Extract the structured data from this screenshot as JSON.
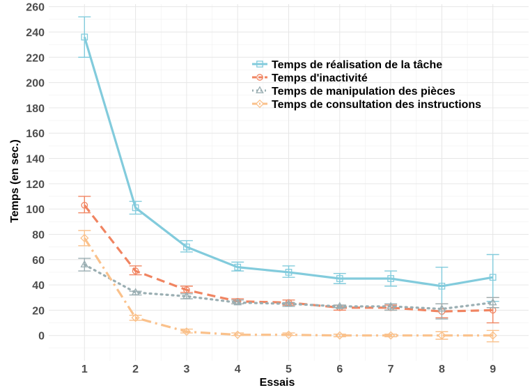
{
  "chart_data": {
    "type": "line",
    "title": "",
    "xlabel": "Essais",
    "ylabel": "Temps (en sec.)",
    "x": [
      1,
      2,
      3,
      4,
      5,
      6,
      7,
      8,
      9
    ],
    "x_ticks": [
      "1",
      "2",
      "3",
      "4",
      "5",
      "6",
      "7",
      "8",
      "9"
    ],
    "y_ticks": [
      "0",
      "20",
      "40",
      "60",
      "80",
      "100",
      "120",
      "140",
      "160",
      "180",
      "200",
      "220",
      "240",
      "260"
    ],
    "xlim": [
      0.3,
      9.7
    ],
    "ylim": [
      -20,
      262
    ],
    "grid": true,
    "legend_position": "top-right",
    "error_bars": true,
    "series": [
      {
        "name": "Temps de réalisation de la tâche",
        "color": "#82CBDC",
        "marker": "square",
        "line_style": "solid",
        "values": [
          236,
          101,
          70,
          54,
          50,
          45,
          45,
          39,
          46
        ],
        "error_low": [
          220,
          96,
          66,
          51,
          46,
          41,
          39,
          25,
          27
        ],
        "error_high": [
          252,
          106,
          75,
          58,
          55,
          49,
          51,
          54,
          64
        ]
      },
      {
        "name": "Temps d'inactivité",
        "color": "#F08461",
        "marker": "circle",
        "line_style": "dashed",
        "values": [
          103,
          51,
          36,
          27,
          26,
          22,
          22,
          19,
          20
        ],
        "error_low": [
          97,
          48,
          34,
          25,
          24,
          20,
          20,
          14,
          10
        ],
        "error_high": [
          110,
          55,
          39,
          29,
          28,
          24,
          24,
          25,
          30
        ]
      },
      {
        "name": "Temps de manipulation des pièces",
        "color": "#9AAEB2",
        "marker": "triangle",
        "line_style": "dotted",
        "values": [
          56,
          34,
          31,
          26,
          25,
          23,
          23,
          21,
          26
        ],
        "error_low": [
          51,
          32,
          29,
          25,
          23,
          22,
          20,
          13,
          22
        ],
        "error_high": [
          61,
          35,
          33,
          28,
          26,
          24,
          25,
          25,
          30
        ]
      },
      {
        "name": "Temps de consultation des instructions",
        "color": "#FAC18B",
        "marker": "diamond",
        "line_style": "dashdot",
        "values": [
          77,
          14,
          3,
          0.5,
          0.5,
          0,
          0,
          0,
          0
        ],
        "error_low": [
          71,
          12,
          2,
          0,
          0,
          -1,
          -1,
          -3,
          -5
        ],
        "error_high": [
          83,
          16,
          5,
          2,
          2,
          1,
          1,
          3,
          4
        ]
      }
    ]
  }
}
